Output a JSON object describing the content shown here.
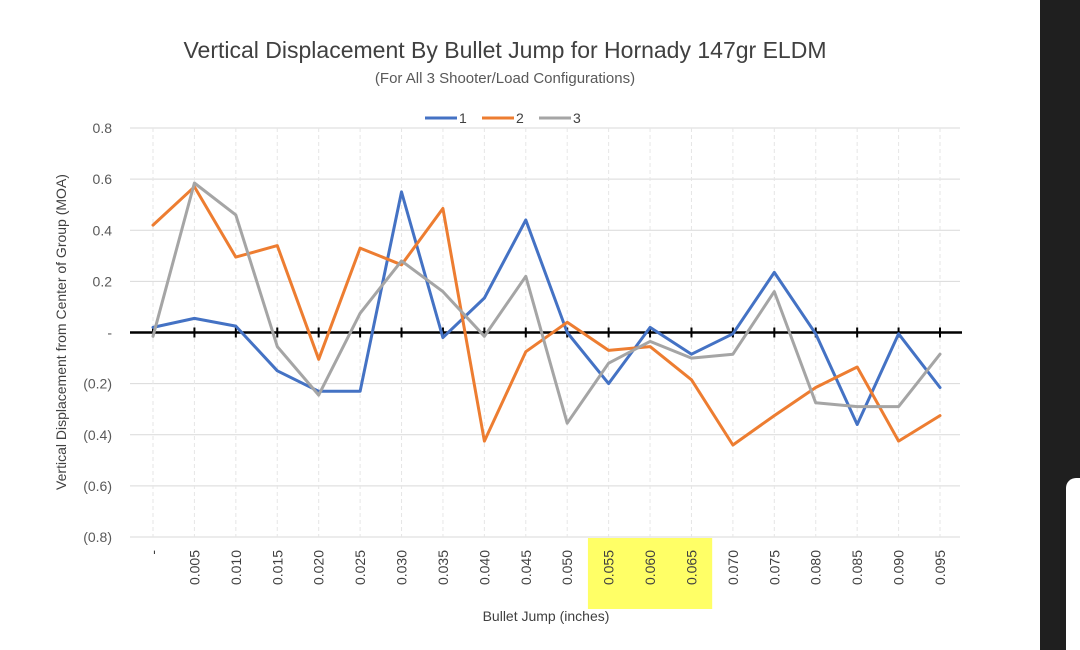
{
  "chart_data": {
    "type": "line",
    "title": "Vertical Displacement By Bullet Jump for Hornady 147gr ELDM",
    "subtitle": "(For All 3 Shooter/Load Configurations)",
    "xlabel": "Bullet Jump (inches)",
    "ylabel": "Vertical Displacement from Center of Group (MOA)",
    "categories": [
      "-",
      "0.005",
      "0.010",
      "0.015",
      "0.020",
      "0.025",
      "0.030",
      "0.035",
      "0.040",
      "0.045",
      "0.050",
      "0.055",
      "0.060",
      "0.065",
      "0.070",
      "0.075",
      "0.080",
      "0.085",
      "0.090",
      "0.095"
    ],
    "highlighted_categories": [
      "0.055",
      "0.060",
      "0.065"
    ],
    "highlight_color": "#ffff66",
    "ylim": [
      -0.8,
      0.8
    ],
    "yticks": [
      {
        "value": 0.8,
        "label": "0.8"
      },
      {
        "value": 0.6,
        "label": "0.6"
      },
      {
        "value": 0.4,
        "label": "0.4"
      },
      {
        "value": 0.2,
        "label": "0.2"
      },
      {
        "value": 0,
        "label": "-"
      },
      {
        "value": -0.2,
        "label": "(0.2)"
      },
      {
        "value": -0.4,
        "label": "(0.4)"
      },
      {
        "value": -0.6,
        "label": "(0.6)"
      },
      {
        "value": -0.8,
        "label": "(0.8)"
      }
    ],
    "grid": true,
    "legend_position": "top",
    "series": [
      {
        "name": "1",
        "color": "#4472c4",
        "values": [
          0.02,
          0.055,
          0.025,
          -0.15,
          -0.23,
          -0.23,
          0.55,
          -0.02,
          0.135,
          0.44,
          0.0,
          -0.2,
          0.02,
          -0.085,
          -0.005,
          0.235,
          -0.005,
          -0.36,
          -0.005,
          -0.215
        ]
      },
      {
        "name": "2",
        "color": "#ed7d31",
        "values": [
          0.42,
          0.57,
          0.295,
          0.34,
          -0.105,
          0.33,
          0.265,
          0.485,
          -0.425,
          -0.075,
          0.04,
          -0.07,
          -0.055,
          -0.185,
          -0.44,
          -0.325,
          -0.215,
          -0.135,
          -0.425,
          -0.325
        ]
      },
      {
        "name": "3",
        "color": "#a5a5a5",
        "values": [
          -0.015,
          0.585,
          0.46,
          -0.055,
          -0.245,
          0.075,
          0.28,
          0.16,
          -0.015,
          0.22,
          -0.355,
          -0.12,
          -0.035,
          -0.1,
          -0.085,
          0.16,
          -0.275,
          -0.29,
          -0.29,
          -0.085
        ]
      }
    ]
  }
}
